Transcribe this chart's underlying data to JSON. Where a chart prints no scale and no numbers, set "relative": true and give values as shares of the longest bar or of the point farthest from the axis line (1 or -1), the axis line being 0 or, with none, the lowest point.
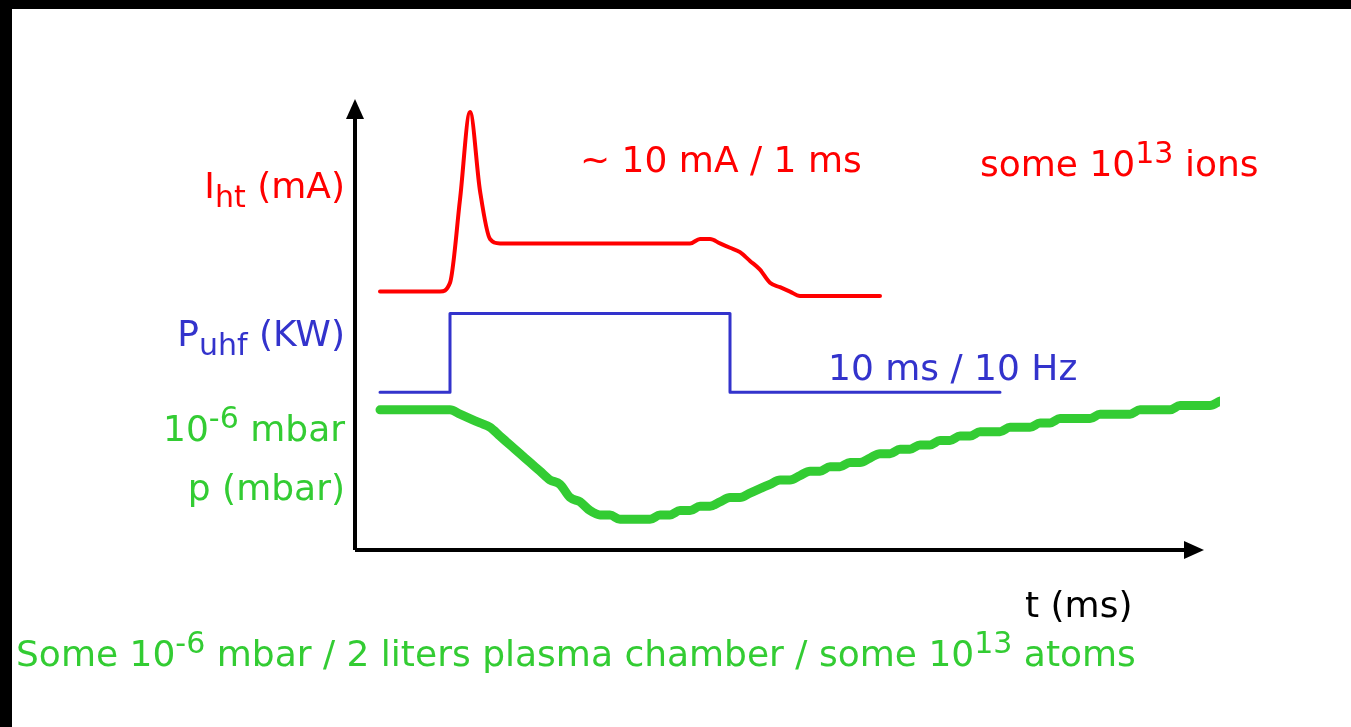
{
  "chart_data": {
    "type": "line",
    "relative": true,
    "xlabel": "t (ms)",
    "legend": false,
    "categories": [
      null,
      null,
      null,
      null,
      null,
      null,
      null,
      null,
      null,
      null,
      null,
      null,
      null,
      null,
      null,
      null,
      null,
      null,
      null,
      null,
      null,
      null,
      null,
      null,
      null,
      null,
      null,
      null,
      null,
      null,
      null,
      null,
      null,
      null,
      null,
      null,
      null,
      null,
      null,
      null,
      null,
      null,
      null,
      null,
      null,
      null,
      null,
      null,
      null,
      null,
      null,
      null,
      null,
      null,
      null,
      null,
      null,
      null,
      null,
      null,
      null,
      null,
      null,
      null,
      null,
      null,
      null,
      null,
      null,
      null,
      null,
      null,
      null,
      null,
      null,
      null,
      null,
      null,
      null,
      null,
      null,
      null,
      null,
      null,
      null
    ],
    "series": [
      {
        "name": "I$_{ht}$ (mA)",
        "type": "line",
        "color": "#ff0000",
        "values": [
          0.59,
          0.59,
          0.59,
          0.59,
          0.59,
          0.59,
          0.59,
          0.61,
          0.8,
          1,
          0.82,
          0.71,
          0.7,
          0.7,
          0.7,
          0.7,
          0.7,
          0.7,
          0.7,
          0.7,
          0.7,
          0.7,
          0.7,
          0.7,
          0.7,
          0.7,
          0.7,
          0.7,
          0.7,
          0.7,
          0.7,
          0.7,
          0.71,
          0.71,
          0.7,
          0.69,
          0.68,
          0.66,
          0.64,
          0.61,
          0.6,
          0.59,
          0.58,
          0.58,
          0.58,
          0.58,
          0.58,
          0.58,
          0.58,
          0.58,
          0.58,
          null,
          null,
          null,
          null,
          null,
          null,
          null,
          null,
          null,
          null,
          null,
          null,
          null,
          null,
          null,
          null,
          null,
          null,
          null,
          null,
          null,
          null,
          null,
          null,
          null,
          null,
          null,
          null,
          null,
          null,
          null,
          null,
          null,
          null
        ]
      },
      {
        "name": "P$_{uhf}$  (KW)",
        "type": "step",
        "color": "#3333cc",
        "values": [
          0.36,
          0.36,
          0.36,
          0.36,
          0.36,
          0.36,
          0.36,
          0.54,
          0.54,
          0.54,
          0.54,
          0.54,
          0.54,
          0.54,
          0.54,
          0.54,
          0.54,
          0.54,
          0.54,
          0.54,
          0.54,
          0.54,
          0.54,
          0.54,
          0.54,
          0.54,
          0.54,
          0.54,
          0.54,
          0.54,
          0.54,
          0.54,
          0.54,
          0.54,
          0.54,
          0.36,
          0.36,
          0.36,
          0.36,
          0.36,
          0.36,
          0.36,
          0.36,
          0.36,
          0.36,
          0.36,
          0.36,
          0.36,
          0.36,
          0.36,
          0.36,
          0.36,
          0.36,
          0.36,
          0.36,
          0.36,
          0.36,
          0.36,
          0.36,
          0.36,
          0.36,
          0.36,
          0.36,
          null,
          null,
          null,
          null,
          null,
          null,
          null,
          null,
          null,
          null,
          null,
          null,
          null,
          null,
          null,
          null,
          null,
          null,
          null,
          null,
          null,
          null
        ]
      },
      {
        "name": "p (mbar)",
        "type": "line",
        "color": "#33cc33",
        "values": [
          0.32,
          0.32,
          0.32,
          0.32,
          0.32,
          0.32,
          0.32,
          0.32,
          0.31,
          0.3,
          0.29,
          0.28,
          0.26,
          0.24,
          0.22,
          0.2,
          0.18,
          0.16,
          0.15,
          0.12,
          0.11,
          0.09,
          0.08,
          0.08,
          0.07,
          0.07,
          0.07,
          0.07,
          0.08,
          0.08,
          0.09,
          0.09,
          0.1,
          0.1,
          0.11,
          0.12,
          0.12,
          0.13,
          0.14,
          0.15,
          0.16,
          0.16,
          0.17,
          0.18,
          0.18,
          0.19,
          0.19,
          0.2,
          0.2,
          0.21,
          0.22,
          0.22,
          0.23,
          0.23,
          0.24,
          0.24,
          0.25,
          0.25,
          0.26,
          0.26,
          0.27,
          0.27,
          0.27,
          0.28,
          0.28,
          0.28,
          0.29,
          0.29,
          0.3,
          0.3,
          0.3,
          0.3,
          0.31,
          0.31,
          0.31,
          0.31,
          0.32,
          0.32,
          0.32,
          0.32,
          0.33,
          0.33,
          0.33,
          0.33,
          0.34
        ]
      }
    ],
    "annotations": [
      "~ 10 mA / 1 ms",
      "some 10$^{13}$ ions",
      "10 ms / 10 Hz",
      "10$^{-6}$ mbar",
      "Some 10$^{-6}$ mbar / 2 liters plasma chamber / some 10$^{13}$ atoms"
    ]
  }
}
